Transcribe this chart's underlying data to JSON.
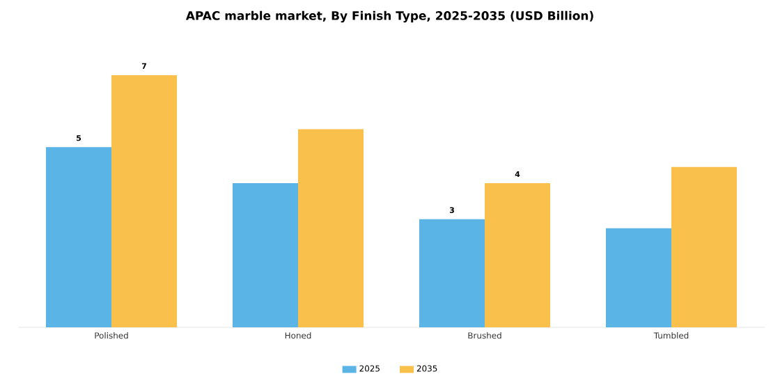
{
  "chart_data": {
    "type": "bar",
    "title": "APAC marble market, By Finish Type, 2025-2035 (USD Billion)",
    "categories": [
      "Polished",
      "Honed",
      "Brushed",
      "Tumbled"
    ],
    "series": [
      {
        "name": "2025",
        "color": "#5ab4e5",
        "values": [
          5,
          4.0,
          3,
          2.75
        ],
        "value_labels": [
          "5",
          null,
          "3",
          null
        ]
      },
      {
        "name": "2035",
        "color": "#f9c04c",
        "values": [
          7,
          5.5,
          4,
          4.45
        ],
        "value_labels": [
          "7",
          null,
          "4",
          null
        ]
      }
    ],
    "legend": "bottom"
  }
}
